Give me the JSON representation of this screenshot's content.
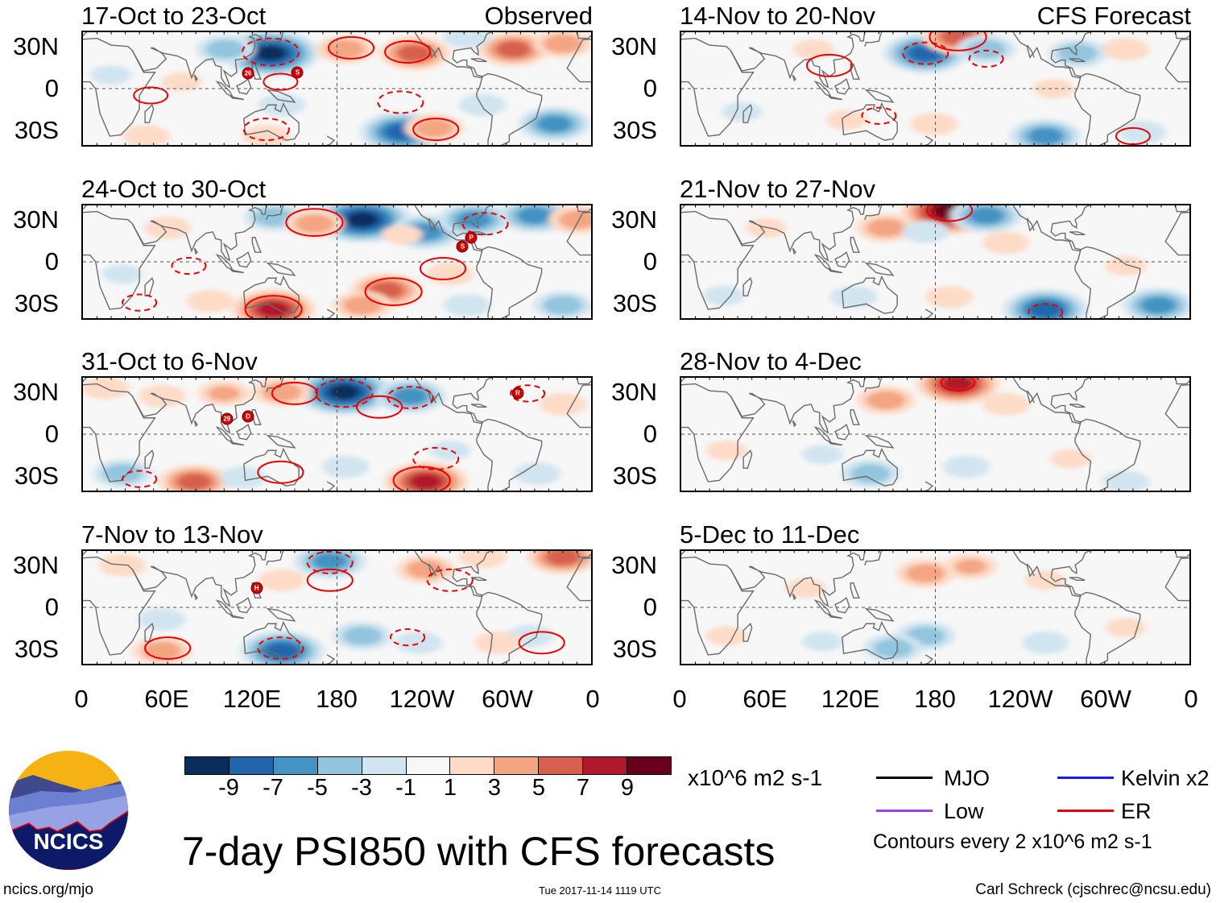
{
  "colors": {
    "levels": [
      "#0a2e5c",
      "#2166ac",
      "#4393c3",
      "#92c5de",
      "#d1e5f0",
      "#f7f7f7",
      "#fddbc7",
      "#f4a582",
      "#d6604d",
      "#b2182b",
      "#67001f"
    ],
    "contour": "#ee0000",
    "coast": "#6b6b6b"
  },
  "left_column_label": "Observed",
  "right_column_label": "CFS Forecast",
  "y_ticks": [
    "30N",
    "0",
    "30S"
  ],
  "x_ticks": [
    "0",
    "60E",
    "120E",
    "180",
    "120W",
    "60W",
    "0"
  ],
  "chart_data": [
    {
      "type": "heatmap",
      "title": "17-Oct to 23-Oct",
      "column": "Observed",
      "lon_range": [
        0,
        360
      ],
      "lat_range": [
        -41,
        41
      ],
      "anomaly_centers": [
        {
          "lon": 133,
          "lat": 26,
          "v": -11
        },
        {
          "lon": 101,
          "lat": 29,
          "v": -5
        },
        {
          "lon": 186,
          "lat": 29,
          "v": 5
        },
        {
          "lon": 235,
          "lat": 26,
          "v": 7
        },
        {
          "lon": 305,
          "lat": 29,
          "v": 7
        },
        {
          "lon": 340,
          "lat": 33,
          "v": 5
        },
        {
          "lon": 226,
          "lat": -32,
          "v": -9
        },
        {
          "lon": 334,
          "lat": -26,
          "v": -7
        },
        {
          "lon": 249,
          "lat": -29,
          "v": 5
        },
        {
          "lon": 141,
          "lat": -12,
          "v": -3
        },
        {
          "lon": 45,
          "lat": -35,
          "v": 3
        },
        {
          "lon": 130,
          "lat": -35,
          "v": 3
        },
        {
          "lon": 70,
          "lat": 5,
          "v": 2
        },
        {
          "lon": 283,
          "lat": -12,
          "v": -3
        },
        {
          "lon": 272,
          "lat": 38,
          "v": -3
        },
        {
          "lon": 20,
          "lat": 10,
          "v": -2
        }
      ],
      "er_contours": [
        {
          "lon": 133,
          "lat": 27,
          "v": -6
        },
        {
          "lon": 190,
          "lat": 30,
          "v": 4
        },
        {
          "lon": 230,
          "lat": 27,
          "v": 4
        },
        {
          "lon": 48,
          "lat": -5,
          "v": 2
        },
        {
          "lon": 140,
          "lat": 5,
          "v": 2
        },
        {
          "lon": 225,
          "lat": -10,
          "v": -4
        },
        {
          "lon": 250,
          "lat": -30,
          "v": 4
        },
        {
          "lon": 130,
          "lat": -30,
          "v": -4
        }
      ],
      "storms": [
        {
          "lon": 117,
          "lat": 11,
          "label": "26"
        },
        {
          "lon": 152,
          "lat": 12,
          "label": "S"
        }
      ]
    },
    {
      "type": "heatmap",
      "title": "24-Oct to 30-Oct",
      "column": "Observed",
      "lon_range": [
        0,
        360
      ],
      "lat_range": [
        -41,
        41
      ],
      "anomaly_centers": [
        {
          "lon": 198,
          "lat": 31,
          "v": -11
        },
        {
          "lon": 243,
          "lat": 22,
          "v": -7
        },
        {
          "lon": 135,
          "lat": 33,
          "v": -5
        },
        {
          "lon": 164,
          "lat": 28,
          "v": 5
        },
        {
          "lon": 277,
          "lat": 31,
          "v": -7
        },
        {
          "lon": 320,
          "lat": 34,
          "v": -7
        },
        {
          "lon": 351,
          "lat": 31,
          "v": 5
        },
        {
          "lon": 135,
          "lat": -35,
          "v": 9
        },
        {
          "lon": 215,
          "lat": -21,
          "v": 7
        },
        {
          "lon": 198,
          "lat": -32,
          "v": 5
        },
        {
          "lon": 90,
          "lat": -29,
          "v": 3
        },
        {
          "lon": 272,
          "lat": -32,
          "v": -3
        },
        {
          "lon": 340,
          "lat": -32,
          "v": -5
        },
        {
          "lon": 260,
          "lat": -9,
          "v": 3
        },
        {
          "lon": 28,
          "lat": -9,
          "v": -2
        },
        {
          "lon": 226,
          "lat": 20,
          "v": 2
        },
        {
          "lon": 60,
          "lat": 25,
          "v": 3
        }
      ],
      "er_contours": [
        {
          "lon": 164,
          "lat": 29,
          "v": 6
        },
        {
          "lon": 220,
          "lat": -22,
          "v": 6
        },
        {
          "lon": 135,
          "lat": -35,
          "v": 6
        },
        {
          "lon": 255,
          "lat": -5,
          "v": 4
        },
        {
          "lon": 75,
          "lat": -3,
          "v": -2
        },
        {
          "lon": 285,
          "lat": 28,
          "v": -4
        },
        {
          "lon": 40,
          "lat": -30,
          "v": -2
        }
      ],
      "storms": [
        {
          "lon": 275,
          "lat": 18,
          "label": "P"
        },
        {
          "lon": 269,
          "lat": 11,
          "label": "S"
        }
      ]
    },
    {
      "type": "heatmap",
      "title": "31-Oct to 6-Nov",
      "column": "Observed",
      "lon_range": [
        0,
        360
      ],
      "lat_range": [
        -41,
        41
      ],
      "anomaly_centers": [
        {
          "lon": 185,
          "lat": 31,
          "v": -11
        },
        {
          "lon": 232,
          "lat": 28,
          "v": -7
        },
        {
          "lon": 141,
          "lat": 31,
          "v": 5
        },
        {
          "lon": 56,
          "lat": 28,
          "v": 3
        },
        {
          "lon": 16,
          "lat": 34,
          "v": 3
        },
        {
          "lon": 79,
          "lat": -35,
          "v": 7
        },
        {
          "lon": 243,
          "lat": -35,
          "v": 9
        },
        {
          "lon": 28,
          "lat": -29,
          "v": -5
        },
        {
          "lon": 113,
          "lat": -32,
          "v": -3
        },
        {
          "lon": 186,
          "lat": -24,
          "v": -3
        },
        {
          "lon": 322,
          "lat": -29,
          "v": -3
        },
        {
          "lon": 340,
          "lat": 22,
          "v": 3
        },
        {
          "lon": 260,
          "lat": -12,
          "v": -2
        },
        {
          "lon": 100,
          "lat": 30,
          "v": 4
        }
      ],
      "er_contours": [
        {
          "lon": 185,
          "lat": 30,
          "v": -6
        },
        {
          "lon": 150,
          "lat": 30,
          "v": 4
        },
        {
          "lon": 210,
          "lat": 20,
          "v": 4
        },
        {
          "lon": 232,
          "lat": 27,
          "v": -4
        },
        {
          "lon": 140,
          "lat": -28,
          "v": 4
        },
        {
          "lon": 240,
          "lat": -34,
          "v": 6
        },
        {
          "lon": 250,
          "lat": -18,
          "v": -4
        },
        {
          "lon": 315,
          "lat": 30,
          "v": -2
        },
        {
          "lon": 40,
          "lat": -33,
          "v": -2
        }
      ],
      "storms": [
        {
          "lon": 102,
          "lat": 11,
          "label": "29"
        },
        {
          "lon": 117,
          "lat": 13,
          "label": "D"
        },
        {
          "lon": 308,
          "lat": 30,
          "label": "R"
        }
      ]
    },
    {
      "type": "heatmap",
      "title": "7-Nov to 13-Nov",
      "column": "Observed",
      "lon_range": [
        0,
        360
      ],
      "lat_range": [
        -41,
        41
      ],
      "anomaly_centers": [
        {
          "lon": 175,
          "lat": 34,
          "v": -7
        },
        {
          "lon": 243,
          "lat": 28,
          "v": 5
        },
        {
          "lon": 340,
          "lat": 37,
          "v": 7
        },
        {
          "lon": 141,
          "lat": 20,
          "v": 3
        },
        {
          "lon": 56,
          "lat": -32,
          "v": 5
        },
        {
          "lon": 141,
          "lat": -32,
          "v": -9
        },
        {
          "lon": 198,
          "lat": -21,
          "v": -5
        },
        {
          "lon": 238,
          "lat": -26,
          "v": -3
        },
        {
          "lon": 317,
          "lat": -21,
          "v": -3
        },
        {
          "lon": 294,
          "lat": -26,
          "v": 3
        },
        {
          "lon": 56,
          "lat": -9,
          "v": -3
        },
        {
          "lon": 28,
          "lat": 31,
          "v": 3
        },
        {
          "lon": 283,
          "lat": 37,
          "v": 3
        }
      ],
      "er_contours": [
        {
          "lon": 175,
          "lat": 33,
          "v": -4
        },
        {
          "lon": 175,
          "lat": 20,
          "v": 4
        },
        {
          "lon": 260,
          "lat": 20,
          "v": -4
        },
        {
          "lon": 60,
          "lat": -30,
          "v": 4
        },
        {
          "lon": 140,
          "lat": -30,
          "v": -4
        },
        {
          "lon": 325,
          "lat": -26,
          "v": 4
        },
        {
          "lon": 230,
          "lat": -22,
          "v": -2
        }
      ],
      "storms": [
        {
          "lon": 123,
          "lat": 14,
          "label": "H"
        }
      ]
    },
    {
      "type": "heatmap",
      "title": "14-Nov to 20-Nov",
      "column": "CFS Forecast",
      "lon_range": [
        0,
        360
      ],
      "lat_range": [
        -41,
        41
      ],
      "anomaly_centers": [
        {
          "lon": 173,
          "lat": 26,
          "v": -9
        },
        {
          "lon": 196,
          "lat": 38,
          "v": 7
        },
        {
          "lon": 216,
          "lat": 29,
          "v": -5
        },
        {
          "lon": 281,
          "lat": 26,
          "v": -5
        },
        {
          "lon": 315,
          "lat": 29,
          "v": 3
        },
        {
          "lon": 264,
          "lat": 0,
          "v": 2
        },
        {
          "lon": 179,
          "lat": -26,
          "v": 3
        },
        {
          "lon": 258,
          "lat": -35,
          "v": -7
        },
        {
          "lon": 327,
          "lat": -32,
          "v": -3
        },
        {
          "lon": 117,
          "lat": -23,
          "v": 2
        },
        {
          "lon": 43,
          "lat": -17,
          "v": -2
        },
        {
          "lon": 94,
          "lat": 29,
          "v": 2
        }
      ],
      "er_contours": [
        {
          "lon": 196,
          "lat": 38,
          "v": 6
        },
        {
          "lon": 173,
          "lat": 26,
          "v": -4
        },
        {
          "lon": 105,
          "lat": 17,
          "v": 4
        },
        {
          "lon": 216,
          "lat": 22,
          "v": -2
        },
        {
          "lon": 140,
          "lat": -20,
          "v": -2
        },
        {
          "lon": 320,
          "lat": -35,
          "v": 2
        }
      ],
      "storms": []
    },
    {
      "type": "heatmap",
      "title": "21-Nov to 27-Nov",
      "column": "CFS Forecast",
      "lon_range": [
        0,
        360
      ],
      "lat_range": [
        -41,
        41
      ],
      "anomaly_centers": [
        {
          "lon": 190,
          "lat": 37,
          "v": 11
        },
        {
          "lon": 216,
          "lat": 34,
          "v": -7
        },
        {
          "lon": 145,
          "lat": 25,
          "v": 5
        },
        {
          "lon": 173,
          "lat": 22,
          "v": -3
        },
        {
          "lon": 230,
          "lat": 14,
          "v": 3
        },
        {
          "lon": 258,
          "lat": -35,
          "v": -9
        },
        {
          "lon": 338,
          "lat": -32,
          "v": -7
        },
        {
          "lon": 190,
          "lat": -26,
          "v": 3
        },
        {
          "lon": 122,
          "lat": -26,
          "v": -3
        },
        {
          "lon": 315,
          "lat": -3,
          "v": 2
        },
        {
          "lon": 60,
          "lat": 25,
          "v": 2
        },
        {
          "lon": 30,
          "lat": -25,
          "v": -2
        }
      ],
      "er_contours": [
        {
          "lon": 190,
          "lat": 38,
          "v": 4
        },
        {
          "lon": 258,
          "lat": -37,
          "v": -2
        }
      ],
      "storms": []
    },
    {
      "type": "heatmap",
      "title": "28-Nov to 4-Dec",
      "column": "CFS Forecast",
      "lon_range": [
        0,
        360
      ],
      "lat_range": [
        -41,
        41
      ],
      "anomaly_centers": [
        {
          "lon": 196,
          "lat": 37,
          "v": 9
        },
        {
          "lon": 145,
          "lat": 25,
          "v": 5
        },
        {
          "lon": 230,
          "lat": 22,
          "v": 3
        },
        {
          "lon": 134,
          "lat": -29,
          "v": -5
        },
        {
          "lon": 202,
          "lat": -24,
          "v": -3
        },
        {
          "lon": 276,
          "lat": -18,
          "v": 2
        },
        {
          "lon": 32,
          "lat": -12,
          "v": 2
        },
        {
          "lon": 315,
          "lat": -35,
          "v": -3
        },
        {
          "lon": 100,
          "lat": -15,
          "v": -2
        }
      ],
      "er_contours": [
        {
          "lon": 196,
          "lat": 38,
          "v": 2
        }
      ],
      "storms": []
    },
    {
      "type": "heatmap",
      "title": "5-Dec to 11-Dec",
      "column": "CFS Forecast",
      "lon_range": [
        0,
        360
      ],
      "lat_range": [
        -41,
        41
      ],
      "anomaly_centers": [
        {
          "lon": 173,
          "lat": 25,
          "v": 5
        },
        {
          "lon": 205,
          "lat": 30,
          "v": 4
        },
        {
          "lon": 88,
          "lat": 14,
          "v": 2
        },
        {
          "lon": 258,
          "lat": 20,
          "v": 2
        },
        {
          "lon": 173,
          "lat": -21,
          "v": -5
        },
        {
          "lon": 150,
          "lat": -30,
          "v": -5
        },
        {
          "lon": 258,
          "lat": -26,
          "v": -3
        },
        {
          "lon": 32,
          "lat": -21,
          "v": 2
        },
        {
          "lon": 315,
          "lat": -15,
          "v": 2
        },
        {
          "lon": 100,
          "lat": -25,
          "v": -2
        }
      ],
      "er_contours": [],
      "storms": []
    }
  ],
  "colorbar": {
    "tick_labels": [
      "-9",
      "-7",
      "-5",
      "-3",
      "-1",
      "1",
      "3",
      "5",
      "7",
      "9"
    ],
    "units": "x10^6 m2 s-1"
  },
  "title": "7-day PSI850 with CFS forecasts",
  "legend": {
    "items": [
      {
        "label": "MJO",
        "color": "#000000"
      },
      {
        "label": "Kelvin x2",
        "color": "#1a1aff"
      },
      {
        "label": "Low",
        "color": "#a040e0"
      },
      {
        "label": "ER",
        "color": "#ee0000"
      }
    ],
    "note": "Contours every 2 x10^6 m2 s-1"
  },
  "logo": {
    "text": "NCICS"
  },
  "footer": {
    "url": "ncics.org/mjo",
    "timestamp": "Tue 2017-11-14 1119 UTC",
    "credit": "Carl Schreck (cjschrec@ncsu.edu)"
  }
}
